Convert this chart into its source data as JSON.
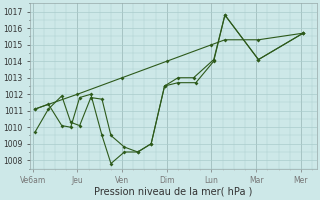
{
  "xlabel": "Pression niveau de la mer( hPa )",
  "background_color": "#cde8e8",
  "grid_color": "#aacccc",
  "line_color": "#2d5a1b",
  "ylim": [
    1007.5,
    1017.5
  ],
  "xtick_labels": [
    "Ve6am",
    "Jeu",
    "Ven",
    "Dim",
    "Lun",
    "Mar",
    "Mer"
  ],
  "xtick_pos": [
    0,
    1,
    2,
    3,
    4,
    5,
    6
  ],
  "xlim": [
    -0.05,
    6.35
  ],
  "line1_x": [
    0.05,
    0.35,
    0.65,
    0.85,
    1.05,
    1.3,
    1.55,
    1.75,
    2.05,
    2.35,
    2.65,
    2.95,
    3.25,
    3.65,
    4.05,
    4.3,
    5.05,
    6.05
  ],
  "line1_y": [
    1009.7,
    1011.1,
    1011.9,
    1010.3,
    1010.1,
    1011.8,
    1011.7,
    1009.5,
    1008.8,
    1008.5,
    1009.0,
    1012.5,
    1012.7,
    1012.7,
    1014.0,
    1016.8,
    1014.1,
    1015.7
  ],
  "line2_x": [
    0.05,
    0.35,
    0.65,
    0.85,
    1.05,
    1.3,
    1.55,
    1.75,
    2.05,
    2.35,
    2.65,
    2.95,
    3.25,
    3.6,
    4.05,
    4.3,
    5.05,
    6.05
  ],
  "line2_y": [
    1011.1,
    1011.4,
    1010.1,
    1010.0,
    1011.8,
    1012.0,
    1009.5,
    1007.8,
    1008.5,
    1008.5,
    1009.0,
    1012.5,
    1013.0,
    1013.0,
    1014.1,
    1016.8,
    1014.1,
    1015.7
  ],
  "line3_x": [
    0.05,
    1.0,
    2.0,
    3.0,
    4.0,
    4.3,
    5.05,
    6.05
  ],
  "line3_y": [
    1011.1,
    1012.0,
    1013.0,
    1014.0,
    1015.0,
    1015.3,
    1015.3,
    1015.7
  ]
}
